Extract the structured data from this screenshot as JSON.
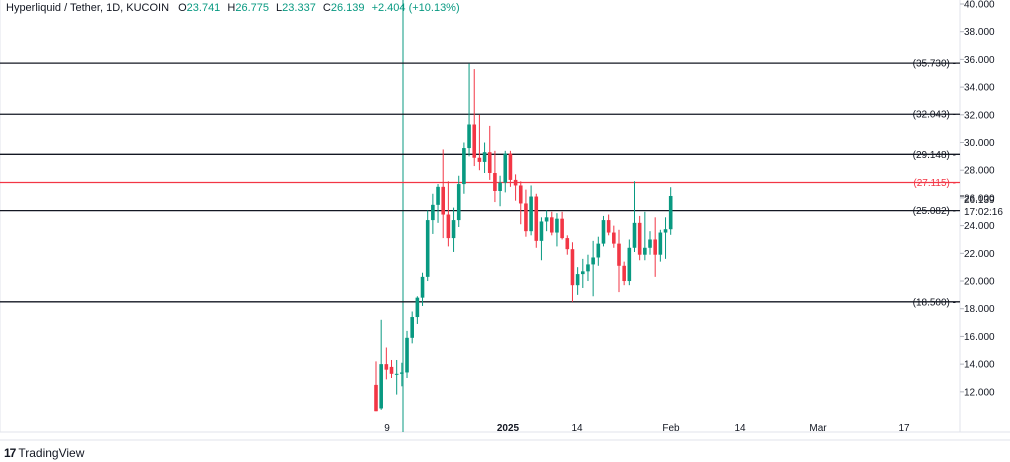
{
  "header": {
    "symbol": "Hyperliquid / Tether, 1D, KUCOIN",
    "open_label": "O",
    "open": "23.741",
    "high_label": "H",
    "high": "26.775",
    "low_label": "L",
    "low": "23.337",
    "close_label": "C",
    "close": "26.139",
    "change": "+2.404 (+10.13%)"
  },
  "price_tag": {
    "price": "26.139",
    "countdown": "17:02:16"
  },
  "brand": {
    "logo": "17",
    "name": "TradingView"
  },
  "colors": {
    "up": "#089981",
    "down": "#f23645",
    "level": "#131722",
    "highlight": "#f23645"
  },
  "chart_data": {
    "type": "candlestick",
    "ylim": [
      10.4,
      40.0
    ],
    "y_ticks": [
      "12.000",
      "14.000",
      "16.000",
      "18.000",
      "20.000",
      "22.000",
      "24.000",
      "26.000",
      "28.000",
      "30.000",
      "32.000",
      "34.000",
      "36.000",
      "38.000",
      "40.000"
    ],
    "x_ticks": [
      "9",
      "2025",
      "14",
      "Feb",
      "14",
      "Mar",
      "17"
    ],
    "levels": [
      {
        "value": 35.73,
        "label": "(35.730)",
        "color": "#131722"
      },
      {
        "value": 32.043,
        "label": "(32.043)",
        "color": "#131722"
      },
      {
        "value": 29.148,
        "label": "(29.148)",
        "color": "#131722"
      },
      {
        "value": 27.115,
        "label": "(27.115)",
        "color": "#f23645"
      },
      {
        "value": 25.082,
        "label": "(25.082)",
        "color": "#131722"
      },
      {
        "value": 18.5,
        "label": "(18.500)",
        "color": "#131722"
      }
    ],
    "candles": [
      [
        12.5,
        14.2,
        10.6,
        10.6
      ],
      [
        10.8,
        17.2,
        10.7,
        14.0
      ],
      [
        14.0,
        15.2,
        12.9,
        13.6
      ],
      [
        13.8,
        14.3,
        13.0,
        13.3
      ],
      [
        13.3,
        14.3,
        11.8,
        13.3
      ],
      [
        13.3,
        14.1,
        12.4,
        13.4
      ],
      [
        13.4,
        16.4,
        13.0,
        15.9
      ],
      [
        15.9,
        17.8,
        15.5,
        17.4
      ],
      [
        17.4,
        18.9,
        16.9,
        18.8
      ],
      [
        18.8,
        20.6,
        18.2,
        20.3
      ],
      [
        20.3,
        25.1,
        20.0,
        24.4
      ],
      [
        24.4,
        26.3,
        23.4,
        25.5
      ],
      [
        25.5,
        27.0,
        24.2,
        26.8
      ],
      [
        26.8,
        29.5,
        23.1,
        24.8
      ],
      [
        24.8,
        27.2,
        22.5,
        23.1
      ],
      [
        23.1,
        25.3,
        22.1,
        24.4
      ],
      [
        24.4,
        27.6,
        23.9,
        27.0
      ],
      [
        27.0,
        30.0,
        26.3,
        29.6
      ],
      [
        29.6,
        35.7,
        29.0,
        31.3
      ],
      [
        31.3,
        35.3,
        28.3,
        28.9
      ],
      [
        28.9,
        32.0,
        28.0,
        28.6
      ],
      [
        28.6,
        30.0,
        27.8,
        29.3
      ],
      [
        29.3,
        31.2,
        27.3,
        27.8
      ],
      [
        27.8,
        29.4,
        25.7,
        26.5
      ],
      [
        26.5,
        27.6,
        25.4,
        27.1
      ],
      [
        27.1,
        29.4,
        26.4,
        29.2
      ],
      [
        29.2,
        29.4,
        26.8,
        27.3
      ],
      [
        27.3,
        27.7,
        25.8,
        26.9
      ],
      [
        26.9,
        27.2,
        24.1,
        25.6
      ],
      [
        25.6,
        26.6,
        23.2,
        23.6
      ],
      [
        23.6,
        26.9,
        23.3,
        26.1
      ],
      [
        26.1,
        26.3,
        22.4,
        22.9
      ],
      [
        22.9,
        24.6,
        21.5,
        24.3
      ],
      [
        24.3,
        25.1,
        23.6,
        24.6
      ],
      [
        24.6,
        25.0,
        23.3,
        23.5
      ],
      [
        23.5,
        24.9,
        22.5,
        24.5
      ],
      [
        24.5,
        25.0,
        23.0,
        23.1
      ],
      [
        23.1,
        23.3,
        21.9,
        22.3
      ],
      [
        22.3,
        22.8,
        18.5,
        19.7
      ],
      [
        19.7,
        21.0,
        19.0,
        20.5
      ],
      [
        20.5,
        21.6,
        19.5,
        20.7
      ],
      [
        20.7,
        21.9,
        20.0,
        21.2
      ],
      [
        21.2,
        22.9,
        18.9,
        21.7
      ],
      [
        21.7,
        23.2,
        21.1,
        22.7
      ],
      [
        22.7,
        24.7,
        22.5,
        24.4
      ],
      [
        24.4,
        24.8,
        23.3,
        23.5
      ],
      [
        23.5,
        24.0,
        22.4,
        22.7
      ],
      [
        22.7,
        23.7,
        19.2,
        21.1
      ],
      [
        21.1,
        21.4,
        19.7,
        20.0
      ],
      [
        20.0,
        23.0,
        19.7,
        22.4
      ],
      [
        22.4,
        27.2,
        22.1,
        24.2
      ],
      [
        24.2,
        24.7,
        21.5,
        21.9
      ],
      [
        21.9,
        25.0,
        21.5,
        22.4
      ],
      [
        22.4,
        23.6,
        21.9,
        23.0
      ],
      [
        23.0,
        24.6,
        20.3,
        21.9
      ],
      [
        21.9,
        23.7,
        21.4,
        23.5
      ],
      [
        23.5,
        24.6,
        21.6,
        23.741
      ],
      [
        23.741,
        26.775,
        23.337,
        26.139
      ]
    ]
  }
}
